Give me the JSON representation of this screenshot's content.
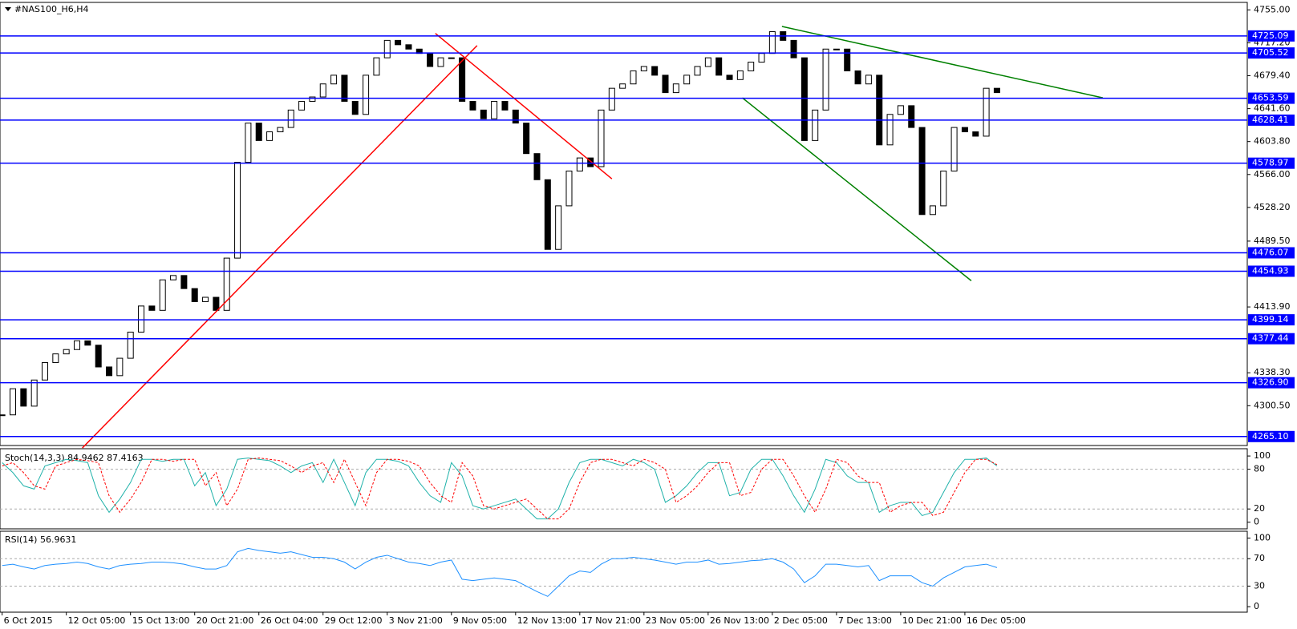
{
  "chart_data": [
    {
      "type": "candlestick",
      "title": "#NAS100_H6,H4",
      "categories": [
        "6 Oct 2015",
        null,
        null,
        null,
        null,
        null,
        "12 Oct 05:00",
        null,
        null,
        null,
        null,
        null,
        "15 Oct 13:00",
        null,
        null,
        null,
        null,
        null,
        "20 Oct 21:00",
        null,
        null,
        null,
        null,
        null,
        "26 Oct 04:00",
        null,
        null,
        null,
        null,
        null,
        "29 Oct 12:00",
        null,
        null,
        null,
        null,
        null,
        "3 Nov 21:00",
        null,
        null,
        null,
        null,
        null,
        "9 Nov 05:00",
        null,
        null,
        null,
        null,
        null,
        "12 Nov 13:00",
        null,
        null,
        null,
        null,
        null,
        "17 Nov 21:00",
        null,
        null,
        null,
        null,
        null,
        "23 Nov 05:00",
        null,
        null,
        null,
        null,
        null,
        "26 Nov 13:00",
        null,
        null,
        null,
        null,
        null,
        "2 Dec 05:00",
        null,
        null,
        null,
        null,
        null,
        "7 Dec 13:00",
        null,
        null,
        null,
        null,
        null,
        "10 Dec 21:00",
        null,
        null,
        null,
        null,
        null,
        "16 Dec 05:00",
        null,
        null,
        null
      ],
      "values": [
        4290,
        4320,
        4300,
        4330,
        4350,
        4360,
        4365,
        4375,
        4370,
        4345,
        4335,
        4355,
        4385,
        4415,
        4410,
        4445,
        4450,
        4435,
        4420,
        4425,
        4410,
        4470,
        4580,
        4625,
        4605,
        4615,
        4620,
        4640,
        4650,
        4655,
        4670,
        4680,
        4650,
        4635,
        4680,
        4700,
        4720,
        4715,
        4710,
        4705,
        4690,
        4700,
        4700,
        4650,
        4640,
        4630,
        4650,
        4640,
        4625,
        4590,
        4560,
        4480,
        4530,
        4570,
        4585,
        4575,
        4640,
        4665,
        4670,
        4685,
        4690,
        4680,
        4660,
        4670,
        4680,
        4690,
        4700,
        4680,
        4675,
        4685,
        4695,
        4705,
        4730,
        4720,
        4700,
        4605,
        4640,
        4710,
        4710,
        4685,
        4670,
        4680,
        4600,
        4635,
        4645,
        4620,
        4520,
        4530,
        4570,
        4620,
        4615,
        4610,
        4665,
        4660
      ],
      "up_color": "#ffffff",
      "down_color": "#000000",
      "xlim": [
        -0.2,
        116.4
      ],
      "ylim": [
        4254.8,
        4763.6
      ],
      "yticks": [
        {
          "value": 4755,
          "label": "4755.00"
        },
        {
          "value": 4717.2,
          "label": "4717.20"
        },
        {
          "value": 4679.4,
          "label": "4679.40"
        },
        {
          "value": 4641.6,
          "label": "4641.60"
        },
        {
          "value": 4603.8,
          "label": "4603.80"
        },
        {
          "value": 4566,
          "label": "4566.00"
        },
        {
          "value": 4528.2,
          "label": "4528.20"
        },
        {
          "value": 4489.5,
          "label": "4489.50"
        },
        {
          "value": 4413.9,
          "label": "4413.90"
        },
        {
          "value": 4338.3,
          "label": "4338.30"
        },
        {
          "value": 4300.5,
          "label": "4300.50"
        }
      ],
      "levels": [
        4725.09,
        4705.52,
        4653.59,
        4628.41,
        4578.97,
        4476.07,
        4454.93,
        4399.14,
        4377.44,
        {
          "value": 4326.9,
          "label": "4326.90"
        },
        {
          "value": 4265.1,
          "label": "4265.10"
        }
      ],
      "level_color": "#0000ff",
      "trendlines": [
        {
          "x": [
            7.5,
            44.4
          ],
          "y": [
            4252,
            4714
          ],
          "color": "#ff0000"
        },
        {
          "x": [
            40.5,
            57
          ],
          "y": [
            4728,
            4561
          ],
          "color": "#ff0000"
        },
        {
          "x": [
            72.9,
            102.9
          ],
          "y": [
            4736,
            4654
          ],
          "color": "#008000"
        },
        {
          "x": [
            69.2,
            90.6
          ],
          "y": [
            4654,
            4444
          ],
          "color": "#008000"
        }
      ]
    },
    {
      "type": "line",
      "title": "Stoch(14,3,3) 84.9462 87.4163",
      "series": [
        {
          "color": "#20b2aa",
          "dash": false,
          "values": [
            90,
            75,
            55,
            50,
            85,
            90,
            95,
            93,
            90,
            40,
            15,
            35,
            60,
            95,
            95,
            92,
            95,
            95,
            55,
            75,
            25,
            50,
            95,
            97,
            95,
            93,
            85,
            75,
            85,
            90,
            60,
            95,
            60,
            25,
            75,
            95,
            95,
            92,
            85,
            60,
            40,
            30,
            90,
            70,
            25,
            20,
            25,
            30,
            35,
            20,
            5,
            5,
            20,
            60,
            90,
            95,
            95,
            90,
            85,
            95,
            90,
            80,
            30,
            40,
            55,
            75,
            90,
            90,
            40,
            45,
            80,
            95,
            95,
            70,
            40,
            15,
            50,
            95,
            90,
            70,
            60,
            60,
            15,
            25,
            30,
            30,
            10,
            15,
            45,
            75,
            95,
            95,
            97,
            85
          ]
        },
        {
          "color": "#ff0000",
          "dash": true,
          "values": [
            85,
            90,
            75,
            55,
            50,
            85,
            90,
            95,
            93,
            90,
            40,
            15,
            35,
            60,
            95,
            95,
            92,
            95,
            95,
            55,
            75,
            25,
            50,
            95,
            97,
            95,
            93,
            85,
            75,
            85,
            90,
            60,
            95,
            60,
            25,
            75,
            95,
            95,
            92,
            85,
            60,
            40,
            30,
            90,
            70,
            25,
            20,
            25,
            30,
            35,
            20,
            5,
            5,
            20,
            60,
            90,
            95,
            95,
            90,
            85,
            95,
            90,
            80,
            30,
            40,
            55,
            75,
            90,
            90,
            40,
            45,
            80,
            95,
            95,
            70,
            40,
            15,
            50,
            95,
            90,
            70,
            60,
            60,
            15,
            25,
            30,
            30,
            10,
            15,
            45,
            75,
            95,
            95,
            87
          ]
        }
      ],
      "ylim": [
        -10,
        111
      ],
      "yticks": [
        100,
        80,
        20,
        0
      ],
      "dashed_levels": [
        80,
        20
      ]
    },
    {
      "type": "line",
      "title": "RSI(14) 56.9631",
      "series": [
        {
          "color": "#1e90ff",
          "dash": false,
          "values": [
            60,
            62,
            58,
            55,
            60,
            62,
            63,
            65,
            63,
            58,
            55,
            60,
            62,
            63,
            65,
            65,
            64,
            62,
            58,
            55,
            55,
            60,
            80,
            85,
            82,
            80,
            78,
            80,
            76,
            72,
            72,
            70,
            65,
            55,
            65,
            72,
            75,
            70,
            65,
            63,
            60,
            65,
            68,
            40,
            38,
            40,
            42,
            40,
            38,
            30,
            22,
            15,
            30,
            45,
            52,
            50,
            62,
            70,
            70,
            72,
            70,
            68,
            65,
            62,
            65,
            65,
            68,
            62,
            63,
            65,
            67,
            68,
            70,
            65,
            55,
            35,
            45,
            62,
            62,
            60,
            58,
            60,
            38,
            45,
            45,
            45,
            35,
            30,
            42,
            50,
            58,
            60,
            62,
            57
          ]
        }
      ],
      "ylim": [
        -8,
        110
      ],
      "yticks": [
        100,
        70,
        30,
        0
      ],
      "dashed_levels": [
        70,
        30
      ]
    }
  ]
}
